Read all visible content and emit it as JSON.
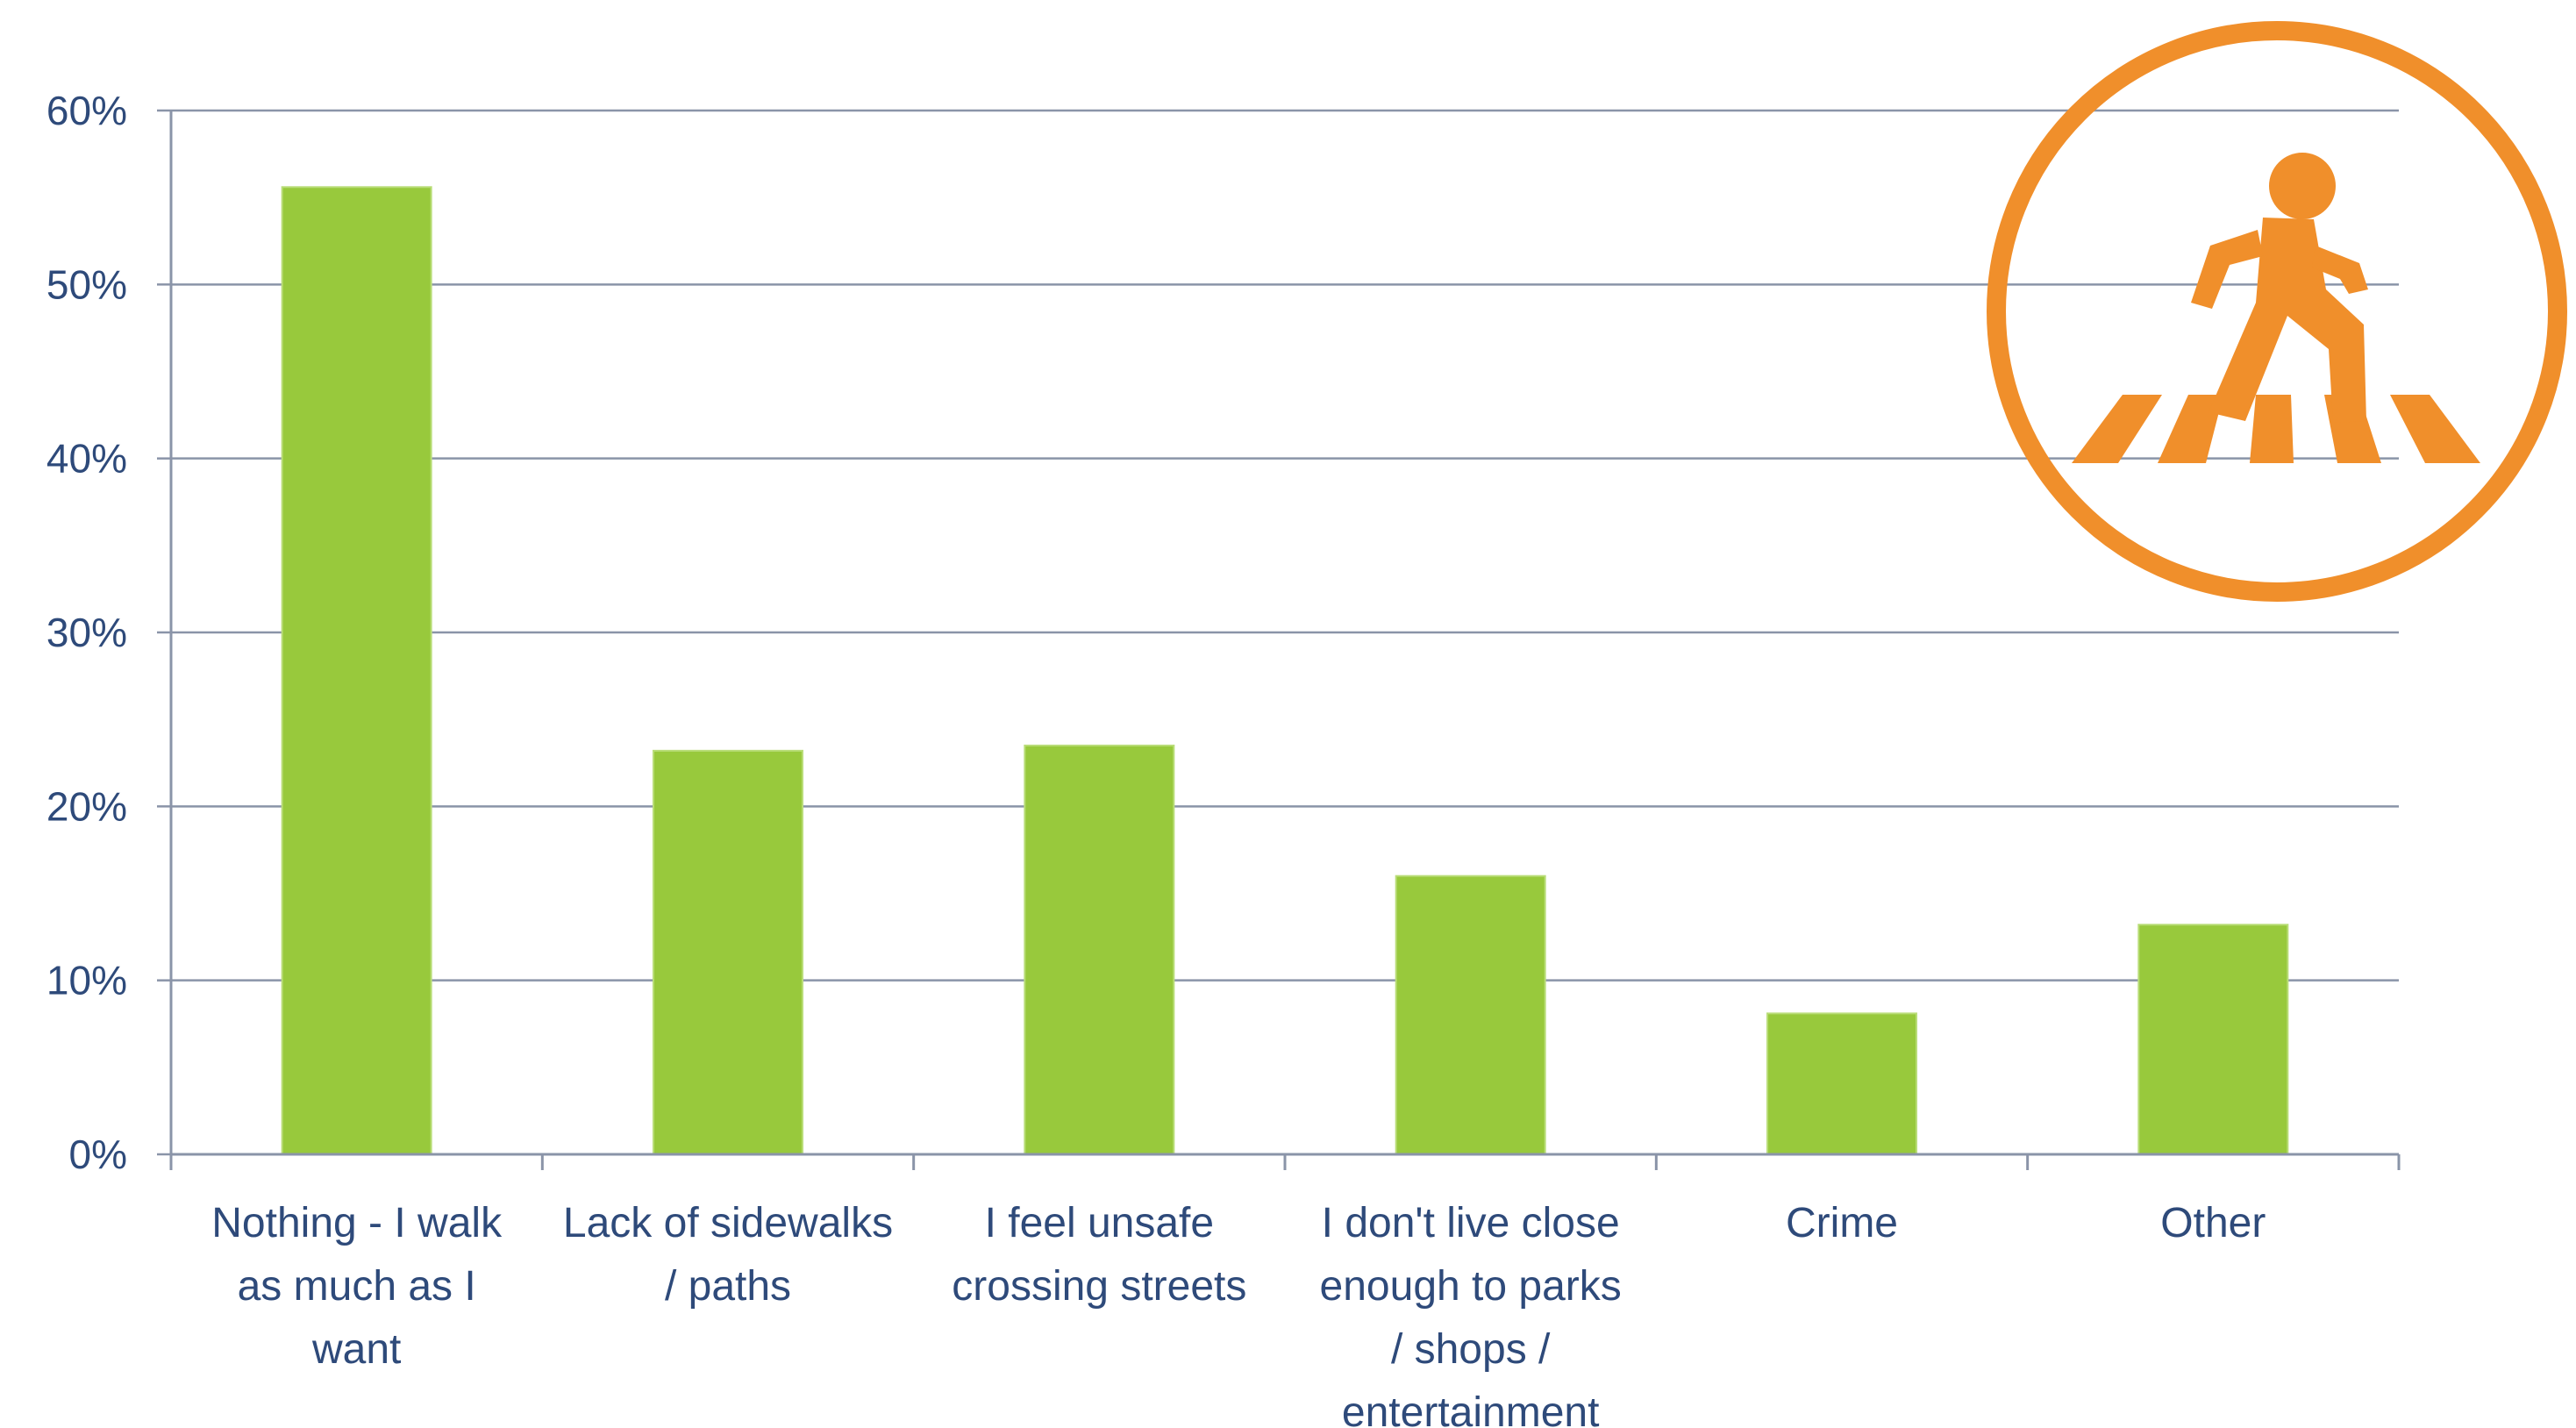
{
  "colors": {
    "bar": "#98c93c",
    "grid": "#8a94a8",
    "axis": "#8a94a8",
    "text": "#2e4a7a",
    "icon": "#f08f2b"
  },
  "icon": {
    "name": "pedestrian-crossing-icon"
  },
  "chart_data": {
    "type": "bar",
    "title": "",
    "xlabel": "",
    "ylabel": "",
    "ylim": [
      0,
      60
    ],
    "y_ticks": [
      "0%",
      "10%",
      "20%",
      "30%",
      "40%",
      "50%",
      "60%"
    ],
    "y_tick_values": [
      0,
      10,
      20,
      30,
      40,
      50,
      60
    ],
    "grid": true,
    "legend": "none",
    "categories": [
      [
        "Nothing - I walk",
        "as much as I",
        "want"
      ],
      [
        "Lack of sidewalks",
        "/ paths"
      ],
      [
        "I feel unsafe",
        "crossing streets"
      ],
      [
        "I don't live close",
        "enough to parks",
        "/ shops /",
        "entertainment"
      ],
      [
        "Crime"
      ],
      [
        "Other"
      ]
    ],
    "values": [
      55.6,
      23.2,
      23.5,
      16.0,
      8.1,
      13.2
    ]
  }
}
